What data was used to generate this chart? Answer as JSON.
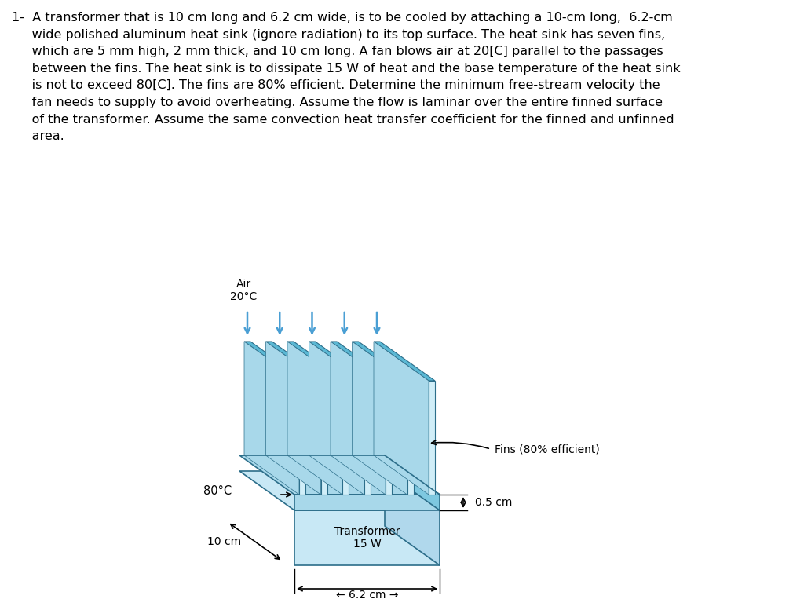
{
  "title_text": "1-  A transformer that is 10 cm long and 6.2 cm wide, is to be cooled by attaching a 10-cm long,  6.2-cm\n     wide polished aluminum heat sink (ignore radiation) to its top surface. The heat sink has seven fins,\n     which are 5 mm high, 2 mm thick, and 10 cm long. A fan blows air at 20[C] parallel to the passages\n     between the fins. The heat sink is to dissipate 15 W of heat and the base temperature of the heat sink\n     is not to exceed 80[C]. The fins are 80% efficient. Determine the minimum free-stream velocity the\n     fan needs to supply to avoid overheating. Assume the flow is laminar over the entire finned surface\n     of the transformer. Assume the same convection heat transfer coefficient for the finned and unfinned\n     area.",
  "bg_color": "#ffffff",
  "text_color": "#000000",
  "fin_color_light": "#a8d8ea",
  "fin_color_dark": "#5bb8d4",
  "fin_edge_color": "#2c6e8a",
  "base_color_light": "#c8e8f5",
  "arrow_color": "#4a9fd4",
  "num_fins": 7,
  "air_label": "Air\n20°C",
  "temp_label": "80°C",
  "fins_label": "Fins (80% efficient)",
  "dim_05": "0.5 cm",
  "dim_10": "10 cm",
  "dim_62": "6.2 cm",
  "transformer_label": "Transformer\n15 W"
}
